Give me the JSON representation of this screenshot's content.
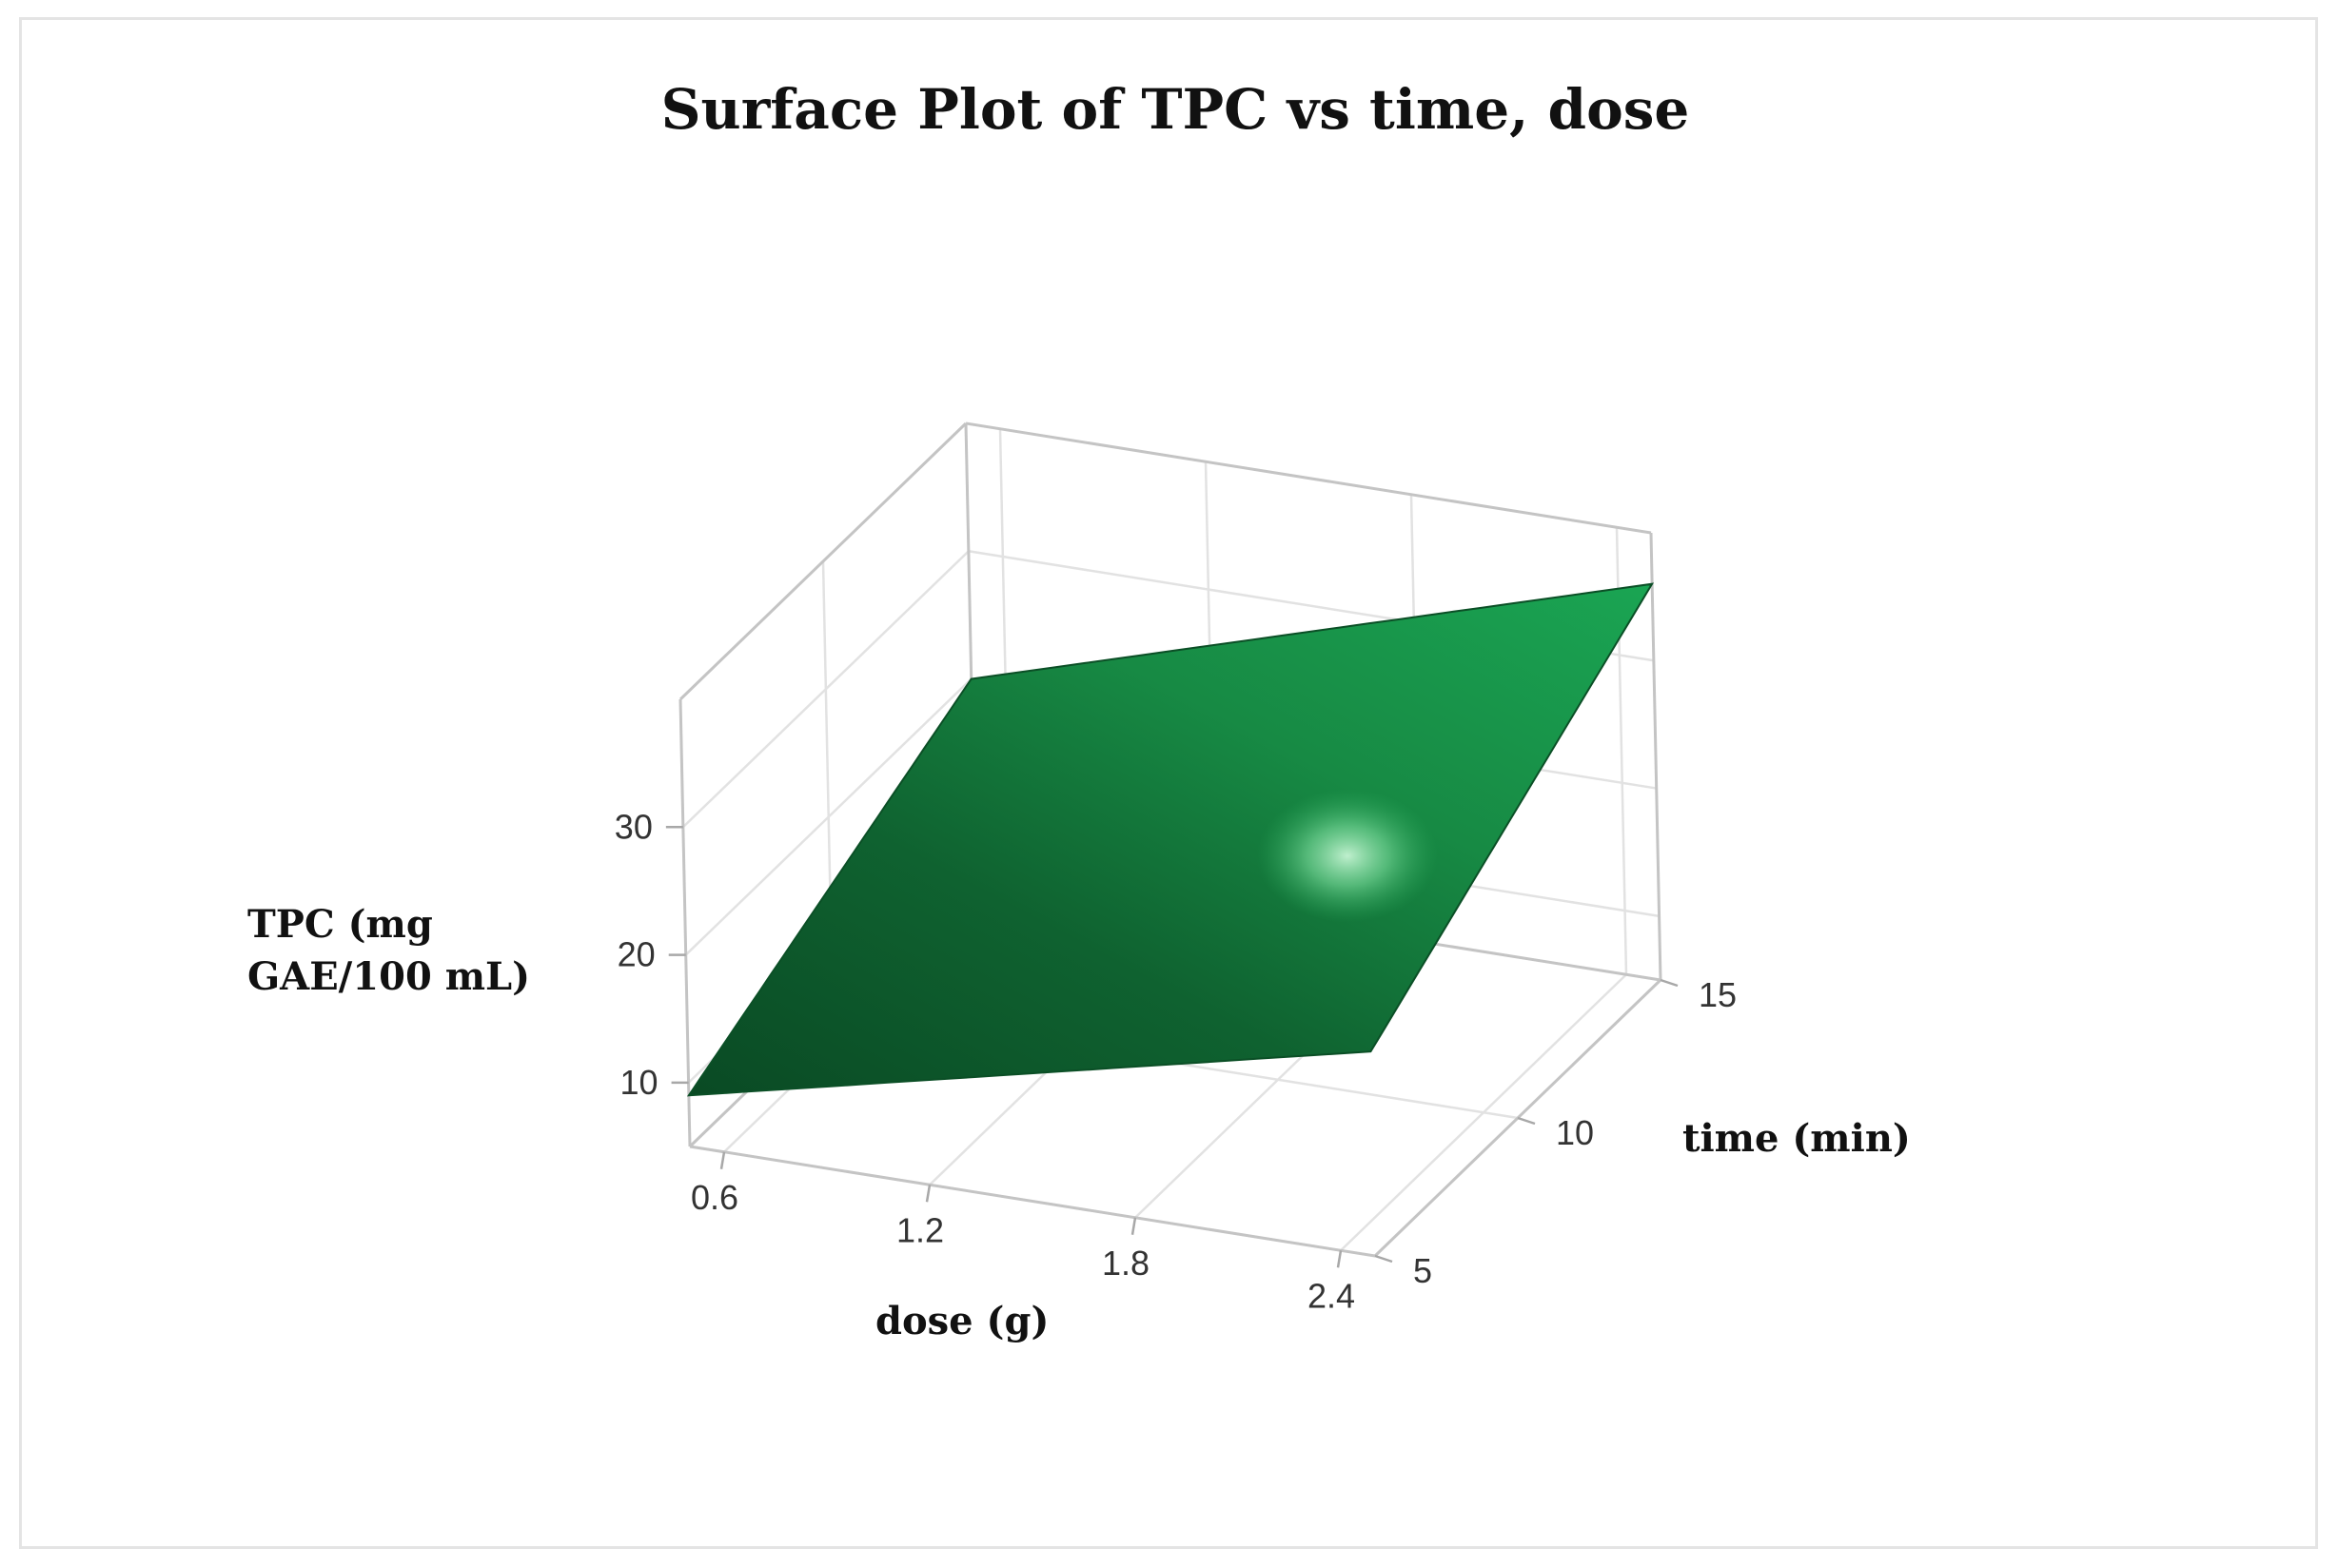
{
  "chart_data": {
    "type": "surface",
    "title": "Surface Plot of TPC vs time, dose",
    "zlabel_lines": [
      "TPC (mg",
      "GAE/100 mL)"
    ],
    "xlabel": "dose (g)",
    "ylabel": "time (min)",
    "x_ticks": [
      "0.6",
      "1.2",
      "1.8",
      "2.4"
    ],
    "y_ticks": [
      "5",
      "10",
      "15"
    ],
    "z_ticks": [
      "10",
      "20",
      "30"
    ],
    "x_range": [
      0.5,
      2.5
    ],
    "y_range": [
      5,
      15
    ],
    "z_range": [
      5,
      40
    ],
    "grid": true,
    "surface_color": "#1a8a44",
    "surface_corners": [
      {
        "dose": 0.5,
        "time": 5,
        "tpc": 9
      },
      {
        "dose": 0.5,
        "time": 15,
        "tpc": 20
      },
      {
        "dose": 2.5,
        "time": 5,
        "tpc": 21
      },
      {
        "dose": 2.5,
        "time": 15,
        "tpc": 36
      }
    ]
  }
}
